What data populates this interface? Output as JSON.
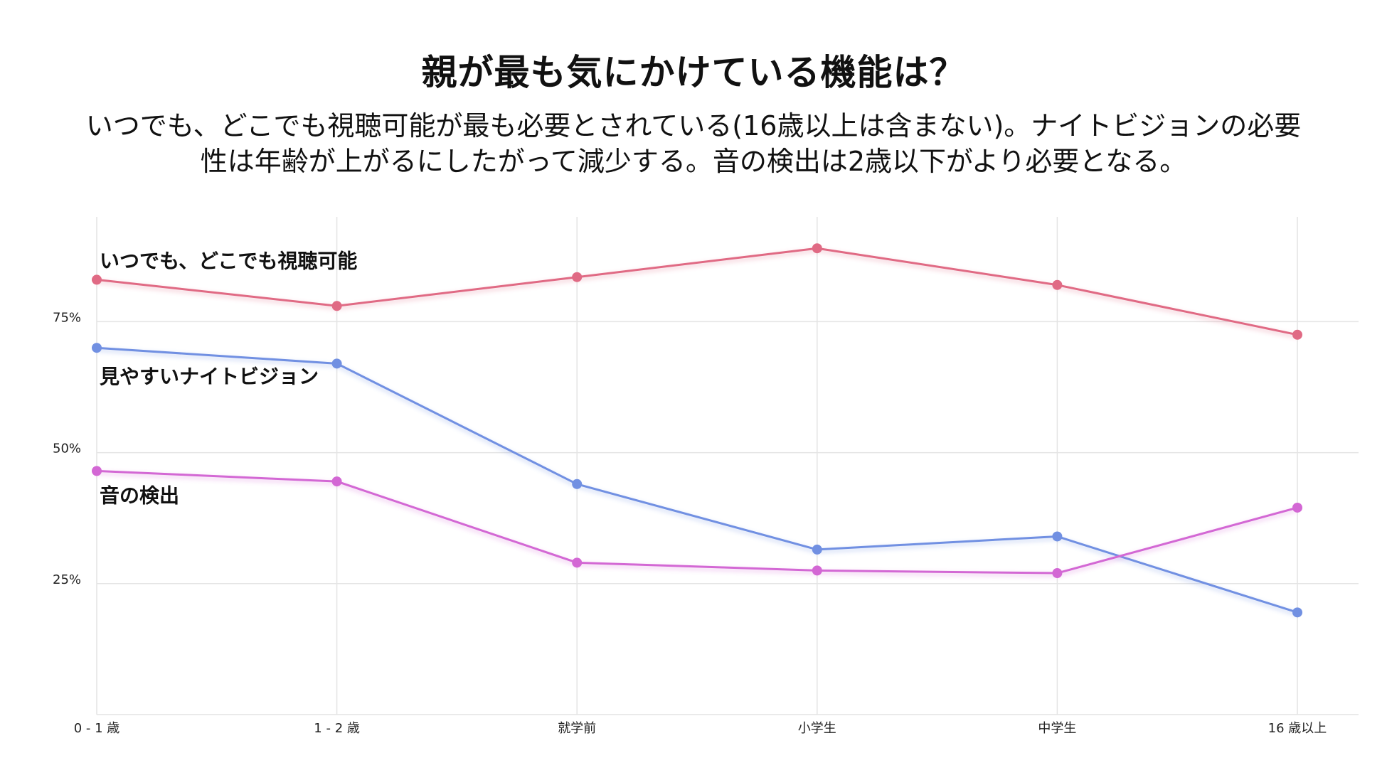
{
  "chart_data": {
    "type": "line",
    "title": "親が最も気にかけている機能は？",
    "subtitle": [
      "いつでも、どこでも視聴可能が最も必要とされている(16歳以上は含まない)。ナイトビジョンの必要",
      "性は年齢が上がるにしたがって減少する。音の検出は2歳以下がより必要となる。"
    ],
    "categories": [
      "0 - 1 歳",
      "1 - 2 歳",
      "就学前",
      "小学生",
      "中学生",
      "16 歳以上"
    ],
    "ylim": [
      0,
      95
    ],
    "yticks": [
      {
        "value": 25,
        "label": "25%"
      },
      {
        "value": 50,
        "label": "50%"
      },
      {
        "value": 75,
        "label": "75%"
      }
    ],
    "grid": true,
    "legend": "inline labels near first point",
    "series": [
      {
        "name": "いつでも、どこでも視聴可能",
        "color": "#e06a84",
        "values": [
          83,
          78,
          83.5,
          89,
          82,
          72.5
        ]
      },
      {
        "name": "見やすいナイトビジョン",
        "color": "#7190e2",
        "values": [
          70,
          67,
          44,
          31.5,
          34,
          19.5
        ]
      },
      {
        "name": "音の検出",
        "color": "#d367d4",
        "values": [
          46.5,
          44.5,
          29,
          27.5,
          27,
          39.5
        ]
      }
    ]
  }
}
